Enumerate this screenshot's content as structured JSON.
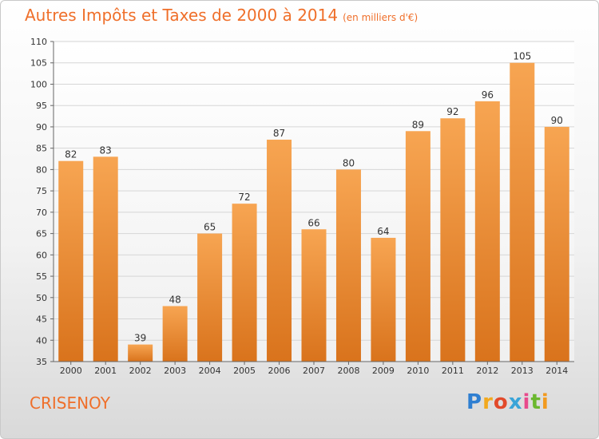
{
  "title": "Autres Impôts et Taxes de 2000 à 2014",
  "subtitle": "(en milliers d'€)",
  "city": "CRISENOY",
  "logo": {
    "text": "Proxiti",
    "name": "proxiti-logo"
  },
  "colors": {
    "accent": "#ef6f2a",
    "bar_top": "#f7a552",
    "bar_bottom": "#d9731c"
  },
  "chart_data": {
    "type": "bar",
    "categories": [
      "2000",
      "2001",
      "2002",
      "2003",
      "2004",
      "2005",
      "2006",
      "2007",
      "2008",
      "2009",
      "2010",
      "2011",
      "2012",
      "2013",
      "2014"
    ],
    "values": [
      82,
      83,
      39,
      48,
      65,
      72,
      87,
      66,
      80,
      64,
      89,
      92,
      96,
      105,
      90
    ],
    "title": "Autres Impôts et Taxes de 2000 à 2014",
    "subtitle": "(en milliers d'€)",
    "xlabel": "",
    "ylabel": "",
    "ylim": [
      35,
      110
    ],
    "yticks": [
      35,
      40,
      45,
      50,
      55,
      60,
      65,
      70,
      75,
      80,
      85,
      90,
      95,
      100,
      105,
      110
    ],
    "grid": true,
    "legend": "none"
  }
}
